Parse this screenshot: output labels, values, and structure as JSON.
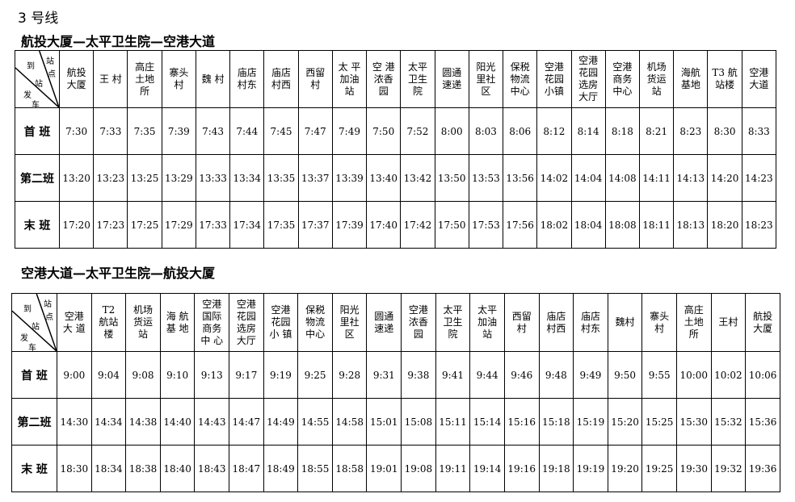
{
  "title": "3 号线",
  "tables": [
    {
      "subtitle": "航投大厦—太平卫生院—空港大道",
      "corner": {
        "a": "站",
        "b": "点",
        "c": "到",
        "d": "站",
        "e": "发",
        "f": "车"
      },
      "stations": [
        "航投\n大厦",
        "王 村",
        "高庄\n土地\n所",
        "寨头\n村",
        "魏 村",
        "庙店\n村东",
        "庙店\n村西",
        "西留\n村",
        "太 平\n加油\n站",
        "空 港\n浓香\n园",
        "太平\n卫生\n院",
        "圆通\n速递",
        "阳光\n里社\n区",
        "保税\n物流\n中心",
        "空港\n花园\n小镇",
        "空港\n花园\n选房\n大厅",
        "空港\n商务\n中心",
        "机场\n货运\n站",
        "海航\n基地",
        "T3 航\n站楼",
        "空港\n大道"
      ],
      "rows": [
        {
          "label": "首 班",
          "times": [
            "7:30",
            "7:33",
            "7:35",
            "7:39",
            "7:43",
            "7:44",
            "7:45",
            "7:47",
            "7:49",
            "7:50",
            "7:52",
            "8:00",
            "8:03",
            "8:06",
            "8:12",
            "8:14",
            "8:18",
            "8:21",
            "8:23",
            "8:30",
            "8:33"
          ]
        },
        {
          "label": "第二班",
          "times": [
            "13:20",
            "13:23",
            "13:25",
            "13:29",
            "13:33",
            "13:34",
            "13:35",
            "13:37",
            "13:39",
            "13:40",
            "13:42",
            "13:50",
            "13:53",
            "13:56",
            "14:02",
            "14:04",
            "14:08",
            "14:11",
            "14:13",
            "14:20",
            "14:23"
          ]
        },
        {
          "label": "末 班",
          "times": [
            "17:20",
            "17:23",
            "17:25",
            "17:29",
            "17:33",
            "17:34",
            "17:35",
            "17:37",
            "17:39",
            "17:40",
            "17:42",
            "17:50",
            "17:53",
            "17:56",
            "18:02",
            "18:04",
            "18:08",
            "18:11",
            "18:13",
            "18:20",
            "18:23"
          ]
        }
      ]
    },
    {
      "subtitle": "空港大道—太平卫生院—航投大厦",
      "corner": {
        "a": "站",
        "b": "点",
        "c": "到",
        "d": "站",
        "e": "发",
        "f": "车"
      },
      "stations": [
        "空港\n大 道",
        "T2\n航站\n楼",
        "机场\n货运\n站",
        "海 航\n基 地",
        "空港\n国际\n商务\n中 心",
        "空港\n花园\n选房\n大厅",
        "空港\n花园\n小 镇",
        "保税\n物流\n中心",
        "阳光\n里社\n区",
        "圆通\n速递",
        "空港\n浓香\n园",
        "太平\n卫生\n院",
        "太平\n加油\n站",
        "西留\n村",
        "庙店\n村西",
        "庙店\n村东",
        "魏村",
        "寨头\n村",
        "高庄\n土地\n所",
        "王村",
        "航投\n大厦"
      ],
      "rows": [
        {
          "label": "首 班",
          "times": [
            "9:00",
            "9:04",
            "9:08",
            "9:10",
            "9:13",
            "9:17",
            "9:19",
            "9:25",
            "9:28",
            "9:31",
            "9:38",
            "9:41",
            "9:44",
            "9:46",
            "9:48",
            "9:49",
            "9:50",
            "9:55",
            "10:00",
            "10:02",
            "10:06"
          ]
        },
        {
          "label": "第二班",
          "times": [
            "14:30",
            "14:34",
            "14:38",
            "14:40",
            "14:43",
            "14:47",
            "14:49",
            "14:55",
            "14:58",
            "15:01",
            "15:08",
            "15:11",
            "15:14",
            "15:16",
            "15:18",
            "15:19",
            "15:20",
            "15:25",
            "15:30",
            "15:32",
            "15:36"
          ]
        },
        {
          "label": "末 班",
          "times": [
            "18:30",
            "18:34",
            "18:38",
            "18:40",
            "18:43",
            "18:47",
            "18:49",
            "18:55",
            "18:58",
            "19:01",
            "19:08",
            "19:11",
            "19:14",
            "19:16",
            "19:18",
            "19:19",
            "19:20",
            "19:25",
            "19:30",
            "19:32",
            "19:36"
          ]
        }
      ]
    }
  ]
}
